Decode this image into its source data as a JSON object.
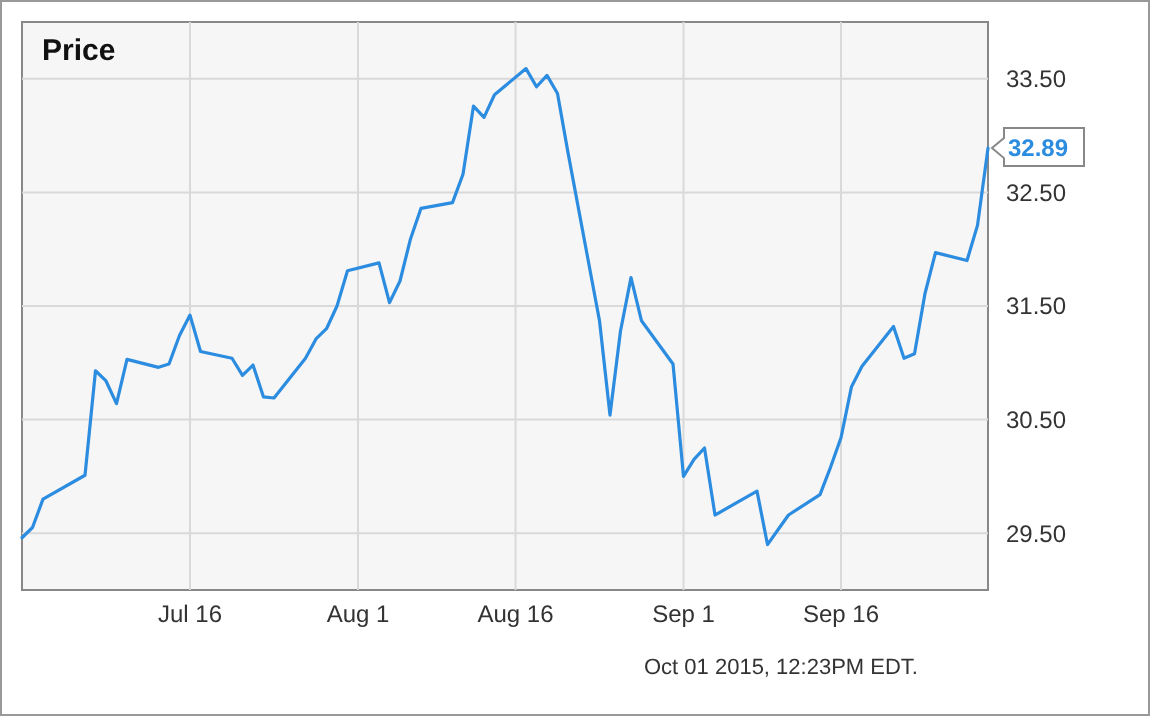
{
  "chart_data": {
    "type": "line",
    "title": "Price",
    "x": [
      "2015-06-30",
      "2015-07-01",
      "2015-07-02",
      "2015-07-06",
      "2015-07-07",
      "2015-07-08",
      "2015-07-09",
      "2015-07-10",
      "2015-07-13",
      "2015-07-14",
      "2015-07-15",
      "2015-07-16",
      "2015-07-17",
      "2015-07-20",
      "2015-07-21",
      "2015-07-22",
      "2015-07-23",
      "2015-07-24",
      "2015-07-27",
      "2015-07-28",
      "2015-07-29",
      "2015-07-30",
      "2015-07-31",
      "2015-08-03",
      "2015-08-04",
      "2015-08-05",
      "2015-08-06",
      "2015-08-07",
      "2015-08-10",
      "2015-08-11",
      "2015-08-12",
      "2015-08-13",
      "2015-08-14",
      "2015-08-17",
      "2015-08-18",
      "2015-08-19",
      "2015-08-20",
      "2015-08-21",
      "2015-08-24",
      "2015-08-25",
      "2015-08-26",
      "2015-08-27",
      "2015-08-28",
      "2015-08-31",
      "2015-09-01",
      "2015-09-02",
      "2015-09-03",
      "2015-09-04",
      "2015-09-08",
      "2015-09-09",
      "2015-09-10",
      "2015-09-11",
      "2015-09-14",
      "2015-09-15",
      "2015-09-16",
      "2015-09-17",
      "2015-09-18",
      "2015-09-21",
      "2015-09-22",
      "2015-09-23",
      "2015-09-24",
      "2015-09-25",
      "2015-09-28",
      "2015-09-29",
      "2015-09-30"
    ],
    "series": [
      {
        "color": "#2b8ce0",
        "values": [
          29.46,
          29.55,
          29.8,
          30.01,
          30.93,
          30.84,
          30.64,
          31.03,
          30.96,
          30.99,
          31.24,
          31.42,
          31.1,
          31.04,
          30.89,
          30.98,
          30.7,
          30.69,
          31.04,
          31.21,
          31.3,
          31.5,
          31.81,
          31.88,
          31.53,
          31.72,
          32.09,
          32.36,
          32.41,
          32.66,
          33.26,
          33.16,
          33.36,
          33.59,
          33.43,
          33.53,
          33.37,
          32.85,
          31.37,
          30.54,
          31.28,
          31.75,
          31.37,
          30.99,
          30.0,
          30.15,
          30.25,
          29.66,
          29.87,
          29.4,
          29.53,
          29.66,
          29.84,
          30.08,
          30.34,
          30.79,
          30.97,
          31.32,
          31.04,
          31.08,
          31.61,
          31.97,
          31.9,
          32.21,
          32.89
        ]
      }
    ],
    "xlim": [
      "2015-06-30",
      "2015-09-30"
    ],
    "xticks": [
      {
        "value": "2015-07-16",
        "label": "Jul 16"
      },
      {
        "value": "2015-08-01",
        "label": "Aug 1"
      },
      {
        "value": "2015-08-16",
        "label": "Aug 16"
      },
      {
        "value": "2015-09-01",
        "label": "Sep 1"
      },
      {
        "value": "2015-09-16",
        "label": "Sep 16"
      }
    ],
    "ylim": [
      29,
      34
    ],
    "yticks": [
      {
        "value": 29.5,
        "label": "29.50"
      },
      {
        "value": 30.5,
        "label": "30.50"
      },
      {
        "value": 31.5,
        "label": "31.50"
      },
      {
        "value": 32.5,
        "label": "32.50"
      },
      {
        "value": 33.5,
        "label": "33.50"
      }
    ],
    "grid": true,
    "marker": "none",
    "annotations": [
      {
        "text": "32.89",
        "x": "2015-09-30",
        "y": 32.89
      },
      "Oct 01 2015, 12:23PM EDT."
    ]
  }
}
